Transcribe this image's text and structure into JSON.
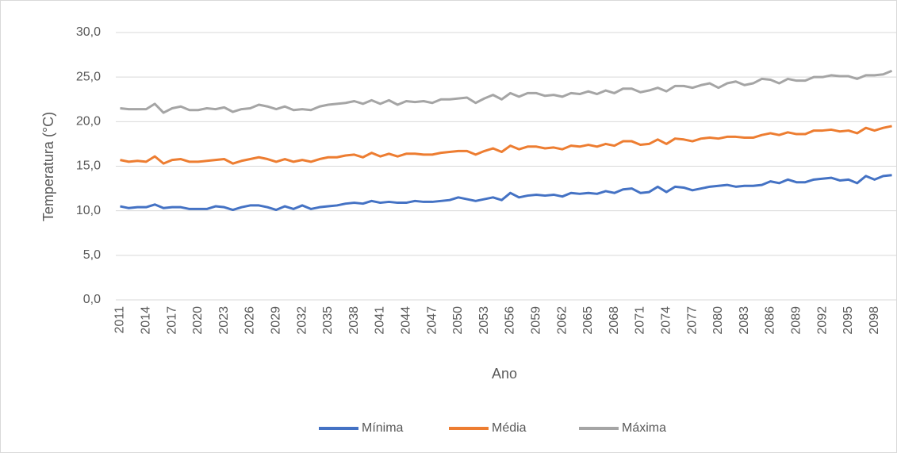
{
  "chart_data": {
    "type": "line",
    "x_label": "Ano",
    "y_label": "Temperatura (°C)",
    "categories": [
      "2011",
      null,
      null,
      "2014",
      null,
      null,
      "2017",
      null,
      null,
      "2020",
      null,
      null,
      "2023",
      null,
      null,
      "2026",
      null,
      null,
      "2029",
      null,
      null,
      "2032",
      null,
      null,
      "2035",
      null,
      null,
      "2038",
      null,
      null,
      "2041",
      null,
      null,
      "2044",
      null,
      null,
      "2047",
      null,
      null,
      "2050",
      null,
      null,
      "2053",
      null,
      null,
      "2056",
      null,
      null,
      "2059",
      null,
      null,
      "2062",
      null,
      null,
      "2065",
      null,
      null,
      "2068",
      null,
      null,
      "2071",
      null,
      null,
      "2074",
      null,
      null,
      "2077",
      null,
      null,
      "2080",
      null,
      null,
      "2083",
      null,
      null,
      "2086",
      null,
      null,
      "2089",
      null,
      null,
      "2092",
      null,
      null,
      "2095",
      null,
      null,
      "2098",
      null,
      null
    ],
    "series": [
      {
        "name": "Mínima",
        "color": "#4472c4",
        "values": [
          10.5,
          10.3,
          10.4,
          10.4,
          10.7,
          10.3,
          10.4,
          10.4,
          10.2,
          10.2,
          10.2,
          10.5,
          10.4,
          10.1,
          10.4,
          10.6,
          10.6,
          10.4,
          10.1,
          10.5,
          10.2,
          10.6,
          10.2,
          10.4,
          10.5,
          10.6,
          10.8,
          10.9,
          10.8,
          11.1,
          10.9,
          11.0,
          10.9,
          10.9,
          11.1,
          11.0,
          11.0,
          11.1,
          11.2,
          11.5,
          11.3,
          11.1,
          11.3,
          11.5,
          11.2,
          12.0,
          11.5,
          11.7,
          11.8,
          11.7,
          11.8,
          11.6,
          12.0,
          11.9,
          12.0,
          11.9,
          12.2,
          12.0,
          12.4,
          12.5,
          12.0,
          12.1,
          12.7,
          12.1,
          12.7,
          12.6,
          12.3,
          12.5,
          12.7,
          12.8,
          12.9,
          12.7,
          12.8,
          12.8,
          12.9,
          13.3,
          13.1,
          13.5,
          13.2,
          13.2,
          13.5,
          13.6,
          13.7,
          13.4,
          13.5,
          13.1,
          13.9,
          13.5,
          13.9,
          14.0
        ]
      },
      {
        "name": "Média",
        "color": "#ed7d31",
        "values": [
          15.7,
          15.5,
          15.6,
          15.5,
          16.1,
          15.3,
          15.7,
          15.8,
          15.5,
          15.5,
          15.6,
          15.7,
          15.8,
          15.3,
          15.6,
          15.8,
          16.0,
          15.8,
          15.5,
          15.8,
          15.5,
          15.7,
          15.5,
          15.8,
          16.0,
          16.0,
          16.2,
          16.3,
          16.0,
          16.5,
          16.1,
          16.4,
          16.1,
          16.4,
          16.4,
          16.3,
          16.3,
          16.5,
          16.6,
          16.7,
          16.7,
          16.3,
          16.7,
          17.0,
          16.6,
          17.3,
          16.9,
          17.2,
          17.2,
          17.0,
          17.1,
          16.9,
          17.3,
          17.2,
          17.4,
          17.2,
          17.5,
          17.3,
          17.8,
          17.8,
          17.4,
          17.5,
          18.0,
          17.5,
          18.1,
          18.0,
          17.8,
          18.1,
          18.2,
          18.1,
          18.3,
          18.3,
          18.2,
          18.2,
          18.5,
          18.7,
          18.5,
          18.8,
          18.6,
          18.6,
          19.0,
          19.0,
          19.1,
          18.9,
          19.0,
          18.7,
          19.3,
          19.0,
          19.3,
          19.5
        ]
      },
      {
        "name": "Máxima",
        "color": "#a5a5a5",
        "values": [
          21.5,
          21.4,
          21.4,
          21.4,
          22.0,
          21.0,
          21.5,
          21.7,
          21.3,
          21.3,
          21.5,
          21.4,
          21.6,
          21.1,
          21.4,
          21.5,
          21.9,
          21.7,
          21.4,
          21.7,
          21.3,
          21.4,
          21.3,
          21.7,
          21.9,
          22.0,
          22.1,
          22.3,
          22.0,
          22.4,
          22.0,
          22.4,
          21.9,
          22.3,
          22.2,
          22.3,
          22.1,
          22.5,
          22.5,
          22.6,
          22.7,
          22.1,
          22.6,
          23.0,
          22.5,
          23.2,
          22.8,
          23.2,
          23.2,
          22.9,
          23.0,
          22.8,
          23.2,
          23.1,
          23.4,
          23.1,
          23.5,
          23.2,
          23.7,
          23.7,
          23.3,
          23.5,
          23.8,
          23.4,
          24.0,
          24.0,
          23.8,
          24.1,
          24.3,
          23.8,
          24.3,
          24.5,
          24.1,
          24.3,
          24.8,
          24.7,
          24.3,
          24.8,
          24.6,
          24.6,
          25.0,
          25.0,
          25.2,
          25.1,
          25.1,
          24.8,
          25.2,
          25.2,
          25.3,
          25.7
        ]
      }
    ],
    "ylim": [
      0,
      30
    ],
    "yticks": [
      {
        "value": 0,
        "label": "0,0"
      },
      {
        "value": 5,
        "label": "5,0"
      },
      {
        "value": 10,
        "label": "10,0"
      },
      {
        "value": 15,
        "label": "15,0"
      },
      {
        "value": 20,
        "label": "20,0"
      },
      {
        "value": 25,
        "label": "25,0"
      },
      {
        "value": 30,
        "label": "30,0"
      }
    ],
    "grid": true,
    "legend": "bottom"
  }
}
